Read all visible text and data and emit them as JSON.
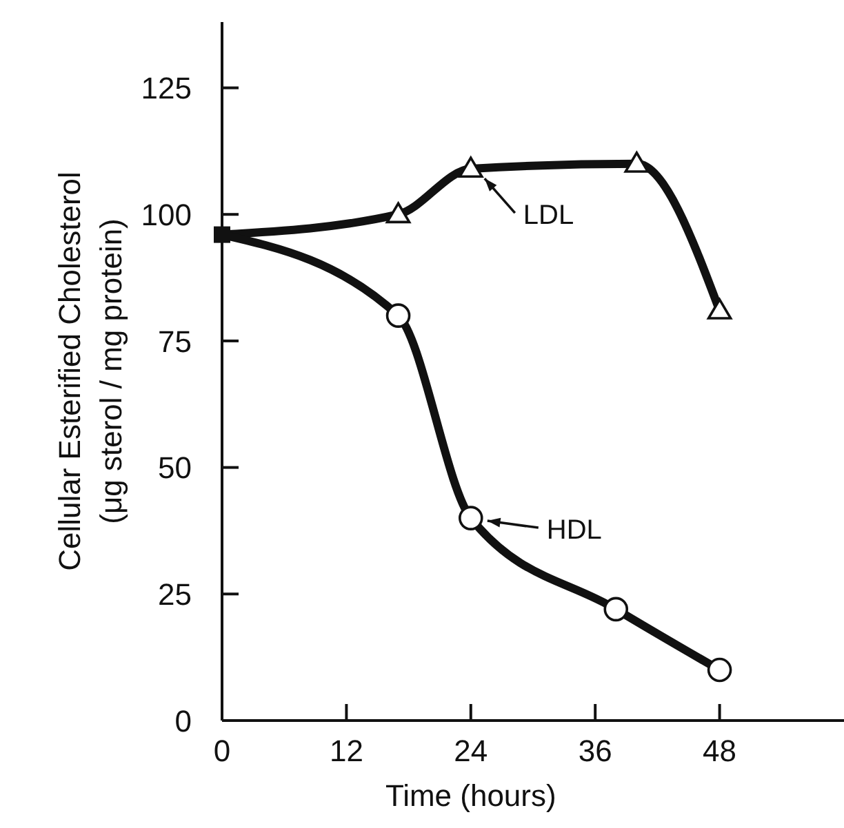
{
  "chart_data": {
    "type": "line",
    "xlabel": "Time (hours)",
    "ylabel": "Cellular Esterified Cholesterol\n(μg sterol / mg protein)",
    "xlim": [
      0,
      60
    ],
    "xticks": [
      0,
      12,
      24,
      36,
      48
    ],
    "ylim": [
      0,
      138
    ],
    "yticks": [
      0,
      25,
      50,
      75,
      100,
      125
    ],
    "grid": false,
    "legend": false,
    "line_style": "solid",
    "series": [
      {
        "type": "scatter",
        "color": "#111111",
        "marker": "square",
        "x": [
          0
        ],
        "values": [
          96
        ]
      },
      {
        "color": "#111111",
        "marker": "triangle",
        "x": [
          0,
          17,
          24,
          40,
          48
        ],
        "values": [
          96,
          100,
          109,
          110,
          81
        ]
      },
      {
        "color": "#111111",
        "marker": "circle",
        "x": [
          0,
          17,
          24,
          38,
          48
        ],
        "values": [
          96,
          80,
          40,
          22,
          10
        ]
      }
    ],
    "annotations": [
      {
        "text": "LDL",
        "x": 24,
        "y": 109
      },
      {
        "text": "HDL",
        "x": 24,
        "y": 40
      }
    ]
  }
}
